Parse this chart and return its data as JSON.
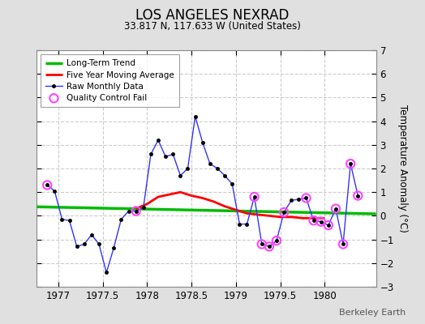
{
  "title": "LOS ANGELES NEXRAD",
  "subtitle": "33.817 N, 117.633 W (United States)",
  "ylabel": "Temperature Anomaly (°C)",
  "credit": "Berkeley Earth",
  "background_color": "#e0e0e0",
  "plot_bg_color": "#ffffff",
  "xlim": [
    1976.75,
    1980.58
  ],
  "ylim": [
    -3,
    7
  ],
  "yticks": [
    -3,
    -2,
    -1,
    0,
    1,
    2,
    3,
    4,
    5,
    6,
    7
  ],
  "xticks": [
    1977,
    1977.5,
    1978,
    1978.5,
    1979,
    1979.5,
    1980
  ],
  "xtick_labels": [
    "1977",
    "1977.5",
    "1978",
    "1978.5",
    "1979",
    "1979.5",
    "1980"
  ],
  "raw_x": [
    1976.875,
    1976.958,
    1977.042,
    1977.125,
    1977.208,
    1977.292,
    1977.375,
    1977.458,
    1977.542,
    1977.625,
    1977.708,
    1977.792,
    1977.875,
    1977.958,
    1978.042,
    1978.125,
    1978.208,
    1978.292,
    1978.375,
    1978.458,
    1978.542,
    1978.625,
    1978.708,
    1978.792,
    1978.875,
    1978.958,
    1979.042,
    1979.125,
    1979.208,
    1979.292,
    1979.375,
    1979.458,
    1979.542,
    1979.625,
    1979.708,
    1979.792,
    1979.875,
    1979.958,
    1980.042,
    1980.125,
    1980.208,
    1980.292,
    1980.375
  ],
  "raw_y": [
    1.3,
    1.05,
    -0.15,
    -0.2,
    -1.3,
    -1.2,
    -0.8,
    -1.2,
    -2.4,
    -1.35,
    -0.15,
    0.2,
    0.2,
    0.35,
    2.6,
    3.2,
    2.5,
    2.6,
    1.7,
    2.0,
    4.2,
    3.1,
    2.2,
    2.0,
    1.7,
    1.35,
    -0.35,
    -0.35,
    0.8,
    -1.2,
    -1.3,
    -1.05,
    0.15,
    0.65,
    0.7,
    0.75,
    -0.2,
    -0.25,
    -0.4,
    0.3,
    -1.2,
    2.2,
    0.85
  ],
  "qc_fail_x": [
    1976.875,
    1977.875,
    1979.208,
    1979.292,
    1979.375,
    1979.458,
    1979.542,
    1979.792,
    1979.875,
    1979.958,
    1980.042,
    1980.125,
    1980.208,
    1980.292,
    1980.375
  ],
  "qc_fail_y": [
    1.3,
    0.2,
    0.8,
    -1.2,
    -1.3,
    -1.05,
    0.15,
    0.75,
    -0.2,
    -0.25,
    -0.4,
    0.3,
    -1.2,
    2.2,
    0.85
  ],
  "moving_avg_x": [
    1977.875,
    1978.0,
    1978.125,
    1978.25,
    1978.375,
    1978.5,
    1978.625,
    1978.75,
    1978.875,
    1979.0,
    1979.125,
    1979.25,
    1979.375,
    1979.5,
    1979.625,
    1979.75,
    1979.875,
    1980.0
  ],
  "moving_avg_y": [
    0.3,
    0.5,
    0.8,
    0.9,
    1.0,
    0.85,
    0.75,
    0.6,
    0.4,
    0.25,
    0.1,
    0.05,
    0.0,
    -0.05,
    -0.05,
    -0.1,
    -0.1,
    -0.1
  ],
  "trend_x": [
    1976.75,
    1980.58
  ],
  "trend_y": [
    0.38,
    0.08
  ],
  "raw_line_color": "#3333ff",
  "raw_marker_color": "#000000",
  "raw_marker_size": 3.0,
  "qc_color": "#ff44ff",
  "trend_color": "#00bb00",
  "moving_avg_color": "#ff0000",
  "grid_color": "#cccccc",
  "grid_linestyle": "--",
  "legend_loc": "upper left"
}
